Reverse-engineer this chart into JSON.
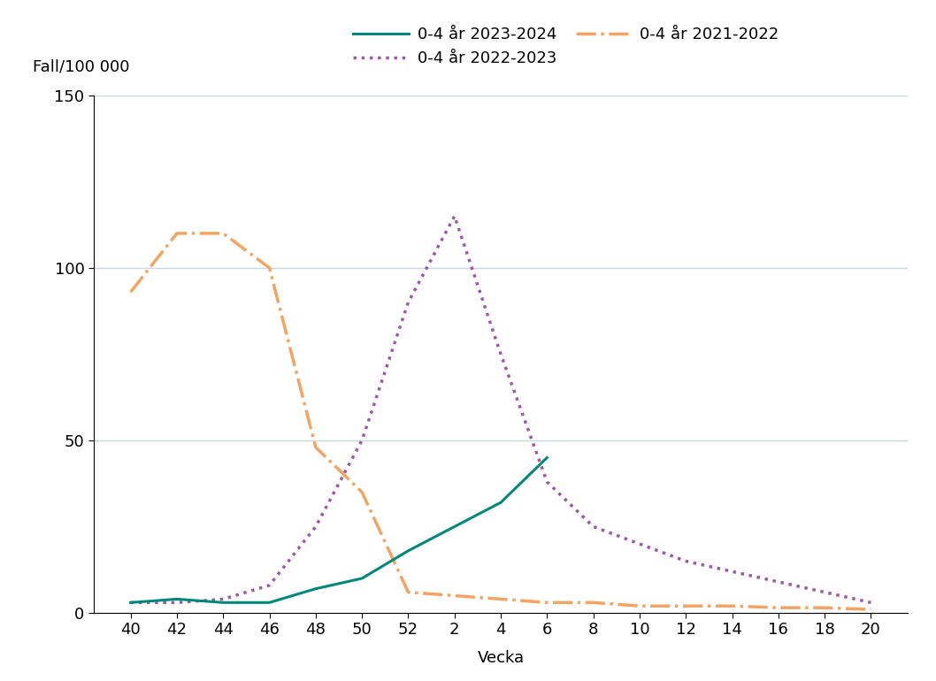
{
  "title": "",
  "ylabel": "Fall/100 000",
  "xlabel": "Vecka",
  "ylim": [
    0,
    150
  ],
  "yticks": [
    0,
    50,
    100,
    150
  ],
  "xtick_labels": [
    "40",
    "42",
    "44",
    "46",
    "48",
    "50",
    "52",
    "2",
    "4",
    "6",
    "8",
    "10",
    "12",
    "14",
    "16",
    "18",
    "20"
  ],
  "x_positions": [
    0,
    1,
    2,
    3,
    4,
    5,
    6,
    7,
    8,
    9,
    10,
    11,
    12,
    13,
    14,
    15,
    16
  ],
  "series_2023_2024": {
    "label": "0-4 år 2023-2024",
    "color": "#00897B",
    "linestyle": "solid",
    "linewidth": 2.2,
    "values": [
      3,
      4,
      3,
      3,
      7,
      10,
      18,
      25,
      32,
      45,
      null,
      null,
      null,
      null,
      null,
      null,
      null
    ]
  },
  "series_2022_2023": {
    "label": "0-4 år 2022-2023",
    "color": "#9C59A5",
    "linestyle": "dotted",
    "linewidth": 2.5,
    "values": [
      3,
      3,
      4,
      8,
      25,
      50,
      90,
      115,
      75,
      38,
      25,
      20,
      15,
      12,
      9,
      6,
      3
    ]
  },
  "series_2021_2022": {
    "label": "0-4 år 2021-2022",
    "color": "#F4A460",
    "linestyle": "dashdot",
    "linewidth": 2.5,
    "values": [
      93,
      110,
      110,
      100,
      48,
      35,
      6,
      5,
      4,
      3,
      3,
      2,
      2,
      2,
      1.5,
      1.5,
      1
    ]
  },
  "background_color": "#ffffff",
  "grid_color": "#c8d8e0",
  "legend_fontsize": 13,
  "axis_fontsize": 13,
  "tick_fontsize": 13
}
